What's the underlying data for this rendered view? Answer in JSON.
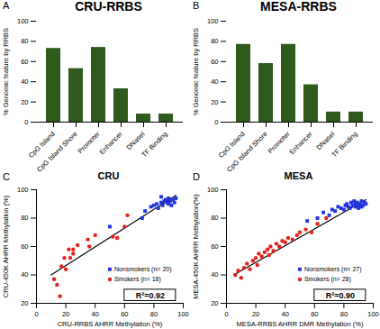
{
  "chart_data": [
    {
      "type": "bar",
      "panel": "A",
      "title": "CRU-RRBS",
      "ylabel": "% Genomic feature by RRBS",
      "categories": [
        "CpG Island",
        "CpG Island Shore",
        "Promoter",
        "Enhancer",
        "DNaseI",
        "TF Binding"
      ],
      "values": [
        73,
        53,
        74,
        33,
        8,
        8
      ],
      "color": "#2e5a1c",
      "ylim": [
        0,
        100
      ],
      "yticks": [
        0,
        20,
        40,
        60,
        80,
        100
      ]
    },
    {
      "type": "bar",
      "panel": "B",
      "title": "MESA-RRBS",
      "ylabel": "% Genomic feature by RRBS",
      "categories": [
        "CpG Island",
        "CpG Island Shore",
        "Promoter",
        "Enhancer",
        "DNaseI",
        "TF Binding"
      ],
      "values": [
        77,
        58,
        77,
        37,
        10,
        10
      ],
      "color": "#2e5a1c",
      "ylim": [
        0,
        100
      ],
      "yticks": [
        0,
        20,
        40,
        60,
        80,
        100
      ]
    },
    {
      "type": "scatter",
      "panel": "C",
      "title": "CRU",
      "xlabel": "CRU-RRBS AHRR Methylation (%)",
      "ylabel": "CRU-450K AHRR Methylation (%)",
      "xlim": [
        0,
        100
      ],
      "xticks": [
        0,
        20,
        40,
        60,
        80,
        100
      ],
      "ylim": [
        20,
        100
      ],
      "yticks": [
        20,
        40,
        60,
        80,
        100
      ],
      "legend": "bottom-right",
      "series": [
        {
          "name": "Nonsmokers (n= 20)",
          "color": "#2233dd",
          "marker": "square",
          "x": [
            50,
            72,
            74,
            78,
            80,
            82,
            83,
            85,
            86,
            87,
            88,
            89,
            90,
            90,
            91,
            92,
            93,
            94,
            95,
            85
          ],
          "values": [
            74,
            80,
            85,
            88,
            89,
            90,
            87,
            91,
            89,
            92,
            93,
            91,
            90,
            94,
            92,
            89,
            93,
            91,
            94,
            95
          ]
        },
        {
          "name": "Smokers (n= 18)",
          "color": "#e3231e",
          "marker": "circle",
          "x": [
            12,
            14,
            16,
            17,
            19,
            20,
            22,
            23,
            25,
            25,
            28,
            35,
            36,
            40,
            52,
            55,
            62,
            60
          ],
          "values": [
            37,
            33,
            25,
            46,
            52,
            44,
            58,
            52,
            55,
            58,
            61,
            65,
            60,
            68,
            67,
            66,
            82,
            74
          ]
        }
      ],
      "regression": {
        "x": [
          10,
          95
        ],
        "y": [
          40,
          96
        ]
      },
      "annotation": "R²=0.92"
    },
    {
      "type": "scatter",
      "panel": "D",
      "title": "MESA",
      "xlabel": "MESA-RRBS AHRR DMR Methylation (%)",
      "ylabel": "MESA-450K AHRR Methylation(%)",
      "xlim": [
        0,
        100
      ],
      "xticks": [
        0,
        20,
        40,
        60,
        80,
        100
      ],
      "ylim": [
        20,
        100
      ],
      "yticks": [
        20,
        40,
        60,
        80,
        100
      ],
      "legend": "bottom-right",
      "series": [
        {
          "name": "Nonsmokers (n= 27)",
          "color": "#2233dd",
          "marker": "square",
          "x": [
            55,
            62,
            66,
            70,
            72,
            74,
            76,
            78,
            80,
            81,
            82,
            83,
            84,
            85,
            86,
            87,
            88,
            88,
            89,
            90,
            90,
            91,
            92,
            92,
            93,
            94,
            95
          ],
          "values": [
            78,
            80,
            84,
            82,
            86,
            85,
            88,
            87,
            86,
            89,
            90,
            88,
            87,
            91,
            89,
            92,
            88,
            90,
            91,
            89,
            87,
            90,
            88,
            92,
            89,
            91,
            90
          ]
        },
        {
          "name": "Smokers (n= 28)",
          "color": "#e3231e",
          "marker": "circle",
          "x": [
            6,
            8,
            10,
            12,
            14,
            16,
            18,
            20,
            21,
            22,
            24,
            26,
            28,
            29,
            30,
            32,
            34,
            36,
            38,
            40,
            42,
            45,
            48,
            50,
            54,
            58,
            62,
            68
          ],
          "values": [
            40,
            43,
            38,
            45,
            48,
            44,
            50,
            52,
            47,
            55,
            53,
            56,
            58,
            54,
            60,
            57,
            62,
            60,
            64,
            63,
            66,
            65,
            68,
            70,
            72,
            70,
            76,
            80
          ]
        }
      ],
      "regression": {
        "x": [
          5,
          95
        ],
        "y": [
          40,
          93
        ]
      },
      "annotation": "R²=0.90"
    }
  ]
}
